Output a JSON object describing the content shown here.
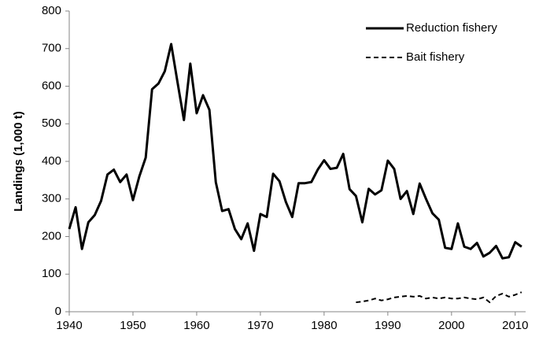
{
  "chart_data": {
    "type": "line",
    "y_label": "Landings (1,000 t)",
    "x": [
      1940,
      1941,
      1942,
      1943,
      1944,
      1945,
      1946,
      1947,
      1948,
      1949,
      1950,
      1951,
      1952,
      1953,
      1954,
      1955,
      1956,
      1957,
      1958,
      1959,
      1960,
      1961,
      1962,
      1963,
      1964,
      1965,
      1966,
      1967,
      1968,
      1969,
      1970,
      1971,
      1972,
      1973,
      1974,
      1975,
      1976,
      1977,
      1978,
      1979,
      1980,
      1981,
      1982,
      1983,
      1984,
      1985,
      1986,
      1987,
      1988,
      1989,
      1990,
      1991,
      1992,
      1993,
      1994,
      1995,
      1996,
      1997,
      1998,
      1999,
      2000,
      2001,
      2002,
      2003,
      2004,
      2005,
      2006,
      2007,
      2008,
      2009,
      2010,
      2011
    ],
    "series": [
      {
        "name": "Reduction fishery",
        "color": "#000000",
        "line_style": "solid",
        "values": [
          220,
          278,
          167,
          238,
          257,
          295,
          365,
          378,
          345,
          365,
          297,
          360,
          410,
          592,
          607,
          640,
          712,
          610,
          510,
          660,
          528,
          576,
          537,
          345,
          268,
          273,
          220,
          193,
          235,
          162,
          260,
          252,
          367,
          347,
          292,
          252,
          342,
          342,
          345,
          378,
          403,
          380,
          383,
          420,
          326,
          308,
          238,
          327,
          312,
          323,
          402,
          380,
          300,
          321,
          260,
          341,
          300,
          262,
          245,
          170,
          167,
          235,
          173,
          167,
          183,
          147,
          157,
          175,
          142,
          145,
          185,
          173
        ]
      },
      {
        "name": "Bait fishery",
        "color": "#000000",
        "line_style": "dashed",
        "values": [
          null,
          null,
          null,
          null,
          null,
          null,
          null,
          null,
          null,
          null,
          null,
          null,
          null,
          null,
          null,
          null,
          null,
          null,
          null,
          null,
          null,
          null,
          null,
          null,
          null,
          null,
          null,
          null,
          null,
          null,
          null,
          null,
          null,
          null,
          null,
          null,
          null,
          null,
          null,
          null,
          null,
          null,
          null,
          null,
          null,
          25,
          27,
          30,
          35,
          30,
          33,
          38,
          40,
          42,
          40,
          42,
          35,
          38,
          35,
          38,
          35,
          35,
          38,
          35,
          33,
          38,
          25,
          42,
          48,
          40,
          45,
          52
        ]
      }
    ],
    "xlim": [
      1940,
      2012
    ],
    "xticks": [
      1940,
      1950,
      1960,
      1970,
      1980,
      1990,
      2000,
      2010
    ],
    "ylim": [
      0,
      800
    ],
    "yticks": [
      0,
      100,
      200,
      300,
      400,
      500,
      600,
      700,
      800
    ],
    "legend": "upper right"
  }
}
